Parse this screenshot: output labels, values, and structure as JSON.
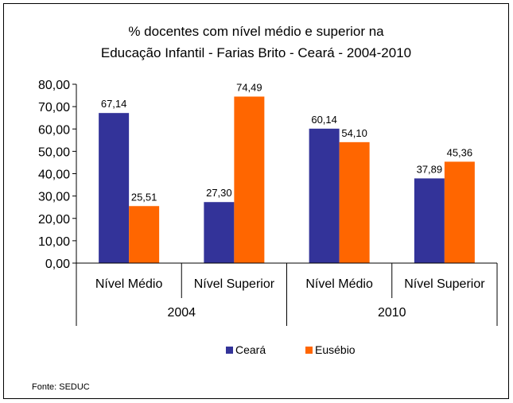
{
  "chart_data": {
    "type": "bar",
    "title_lines": [
      "% docentes com nível médio e superior na",
      "Educação Infantil - Farias Brito -  Ceará - 2004-2010"
    ],
    "groups": [
      {
        "label": "2004",
        "categories": [
          "Nível Médio",
          "Nível Superior"
        ]
      },
      {
        "label": "2010",
        "categories": [
          "Nível Médio",
          "Nível Superior"
        ]
      }
    ],
    "series": [
      {
        "name": "Ceará",
        "color": "#333399",
        "values": [
          67.14,
          27.3,
          60.14,
          37.89
        ],
        "labels": [
          "67,14",
          "27,30",
          "60,14",
          "37,89"
        ]
      },
      {
        "name": "Eusébio",
        "color": "#FF6600",
        "values": [
          25.51,
          74.49,
          54.1,
          45.36
        ],
        "labels": [
          "25,51",
          "74,49",
          "54,10",
          "45,36"
        ]
      }
    ],
    "ylim": [
      0,
      80
    ],
    "yticks": [
      "0,00",
      "10,00",
      "20,00",
      "30,00",
      "40,00",
      "50,00",
      "60,00",
      "70,00",
      "80,00"
    ],
    "legend_position": "bottom",
    "grid": false,
    "source": "Fonte: SEDUC"
  }
}
